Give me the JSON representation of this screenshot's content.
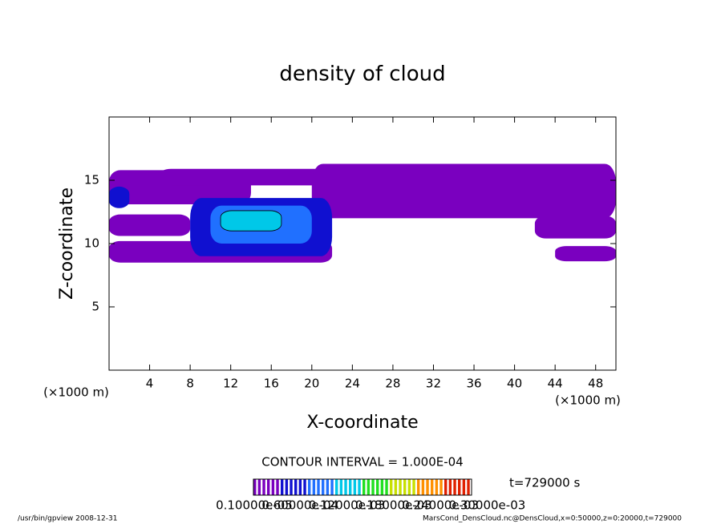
{
  "chart_data": {
    "type": "contour",
    "title": "density of cloud",
    "x_label": "X-coordinate",
    "y_label": "Z-coordinate",
    "x_unit": "(×1000 m)",
    "y_unit": "(×1000 m)",
    "xlim": [
      0,
      50
    ],
    "ylim": [
      0,
      20
    ],
    "xticks": [
      4,
      8,
      12,
      16,
      20,
      24,
      28,
      32,
      36,
      40,
      44,
      48
    ],
    "yticks": [
      5,
      10,
      15
    ],
    "levels": [
      0,
      4e-05,
      8e-05,
      0.00012,
      0.00016,
      0.0002,
      0.00024,
      0.00028
    ],
    "colors": [
      "#7a00bf",
      "#1010d0",
      "#2070ff",
      "#00c8e8",
      "#20e020",
      "#c8e000",
      "#ff9000",
      "#e02000"
    ],
    "patches": [
      {
        "x": [
          0,
          14
        ],
        "z": [
          13.1,
          15.8
        ],
        "value": 2e-05
      },
      {
        "x": [
          5,
          30
        ],
        "z": [
          14.6,
          15.9
        ],
        "value": 2e-05
      },
      {
        "x": [
          20,
          50
        ],
        "z": [
          12.0,
          16.3
        ],
        "value": 2e-05
      },
      {
        "x": [
          0,
          8
        ],
        "z": [
          10.6,
          12.3
        ],
        "value": 2e-05
      },
      {
        "x": [
          0,
          22
        ],
        "z": [
          8.5,
          10.2
        ],
        "value": 2e-05
      },
      {
        "x": [
          42,
          50
        ],
        "z": [
          10.4,
          12.2
        ],
        "value": 2e-05
      },
      {
        "x": [
          44,
          50
        ],
        "z": [
          8.6,
          9.8
        ],
        "value": 2e-05
      },
      {
        "x": [
          0,
          2
        ],
        "z": [
          12.8,
          14.5
        ],
        "value": 5e-05
      },
      {
        "x": [
          8,
          22
        ],
        "z": [
          9.0,
          13.6
        ],
        "value": 6e-05
      },
      {
        "x": [
          10,
          20
        ],
        "z": [
          10.0,
          13.0
        ],
        "value": 0.0001
      },
      {
        "x": [
          11,
          17
        ],
        "z": [
          11.0,
          12.6
        ],
        "value": 0.00015
      }
    ],
    "contour_interval": "CONTOUR INTERVAL = 1.000E-04",
    "time": "t=729000 s",
    "colorbar_ticks": [
      {
        "value": 1e-06,
        "label": "0.10000e-05"
      },
      {
        "value": 6e-05,
        "label": "0.60000e-04"
      },
      {
        "value": 0.00012,
        "label": "0.12000e-03"
      },
      {
        "value": 0.00018,
        "label": "0.18000e-03"
      },
      {
        "value": 0.00024,
        "label": "0.24000e-03"
      },
      {
        "value": 0.0003,
        "label": "0.30000e-03"
      }
    ],
    "footer_left": "/usr/bin/gpview   2008-12-31",
    "footer_right": "MarsCond_DensCloud.nc@DensCloud,x=0:50000,z=0:20000,t=729000"
  }
}
